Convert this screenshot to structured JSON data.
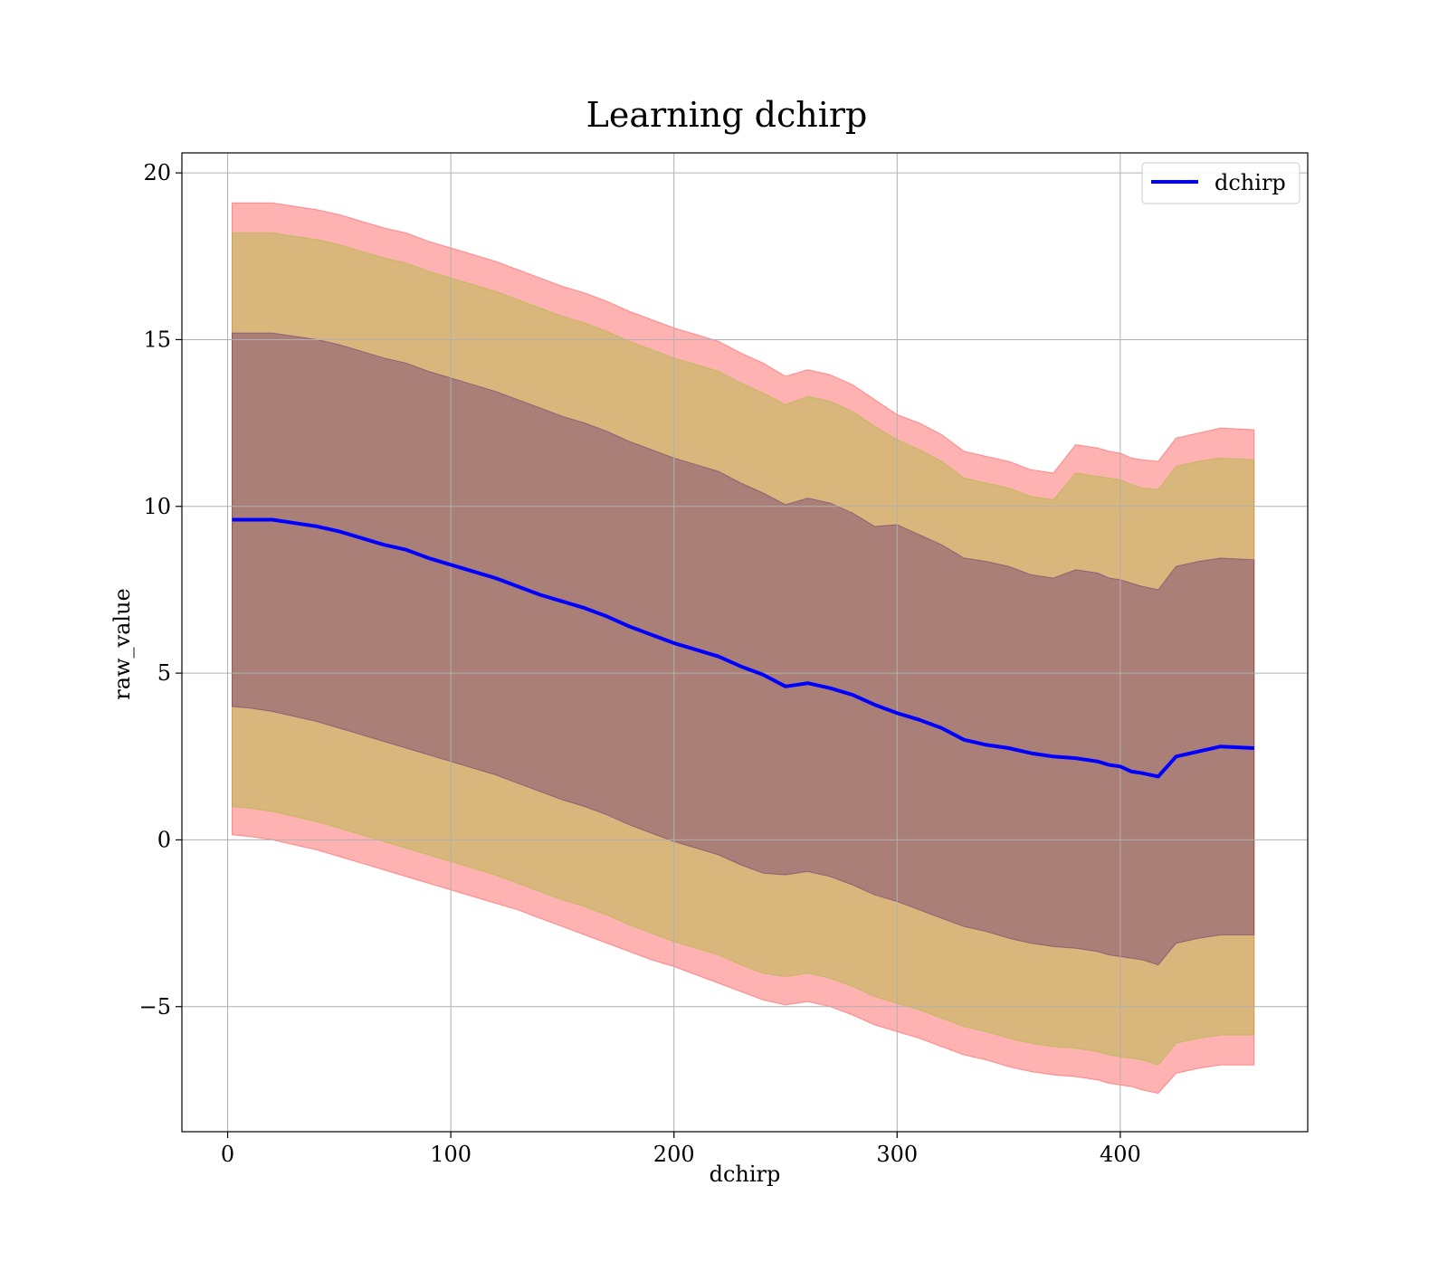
{
  "chart_data": {
    "type": "line",
    "title": "Learning dchirp",
    "xlabel": "dchirp",
    "ylabel": "raw_value",
    "xlim": [
      -20.5,
      484
    ],
    "ylim": [
      -8.75,
      20.6
    ],
    "xticks": [
      0,
      100,
      200,
      300,
      400
    ],
    "yticks": [
      -5,
      0,
      5,
      10,
      15,
      20
    ],
    "grid": true,
    "legend": {
      "placement": "upper right"
    },
    "series": [
      {
        "name": "dchirp",
        "color": "#0000ff",
        "x": [
          2,
          10,
          20,
          30,
          40,
          50,
          60,
          70,
          80,
          90,
          100,
          110,
          120,
          130,
          140,
          150,
          160,
          170,
          180,
          190,
          200,
          210,
          220,
          230,
          240,
          250,
          260,
          270,
          280,
          290,
          300,
          310,
          320,
          330,
          340,
          350,
          360,
          370,
          380,
          390,
          395,
          400,
          405,
          410,
          417,
          425,
          435,
          445,
          460
        ],
        "y": [
          9.6,
          9.6,
          9.6,
          9.5,
          9.4,
          9.25,
          9.05,
          8.85,
          8.7,
          8.45,
          8.25,
          8.05,
          7.85,
          7.6,
          7.35,
          7.15,
          6.95,
          6.7,
          6.4,
          6.15,
          5.9,
          5.7,
          5.5,
          5.2,
          4.95,
          4.6,
          4.7,
          4.55,
          4.35,
          4.05,
          3.8,
          3.6,
          3.35,
          3.0,
          2.85,
          2.75,
          2.6,
          2.5,
          2.45,
          2.35,
          2.25,
          2.2,
          2.05,
          2.0,
          1.9,
          2.5,
          2.65,
          2.8,
          2.75
        ]
      }
    ],
    "bands": [
      {
        "color": "#ff0000",
        "opacity": 0.3,
        "lower": [
          0.15,
          0.1,
          0.0,
          -0.15,
          -0.3,
          -0.5,
          -0.7,
          -0.9,
          -1.1,
          -1.3,
          -1.5,
          -1.7,
          -1.9,
          -2.1,
          -2.35,
          -2.6,
          -2.85,
          -3.1,
          -3.35,
          -3.6,
          -3.8,
          -4.05,
          -4.3,
          -4.55,
          -4.8,
          -4.95,
          -4.85,
          -5.0,
          -5.25,
          -5.55,
          -5.75,
          -5.95,
          -6.2,
          -6.45,
          -6.6,
          -6.8,
          -6.95,
          -7.05,
          -7.1,
          -7.2,
          -7.3,
          -7.35,
          -7.4,
          -7.5,
          -7.6,
          -7.0,
          -6.85,
          -6.75,
          -6.75
        ],
        "upper": [
          19.1,
          19.1,
          19.1,
          19.0,
          18.9,
          18.75,
          18.55,
          18.35,
          18.2,
          17.95,
          17.75,
          17.55,
          17.35,
          17.1,
          16.85,
          16.6,
          16.4,
          16.15,
          15.85,
          15.6,
          15.35,
          15.15,
          14.95,
          14.6,
          14.3,
          13.9,
          14.1,
          13.95,
          13.65,
          13.2,
          12.75,
          12.5,
          12.15,
          11.65,
          11.5,
          11.35,
          11.1,
          11.0,
          11.85,
          11.75,
          11.65,
          11.6,
          11.45,
          11.4,
          11.35,
          12.05,
          12.2,
          12.35,
          12.3
        ]
      },
      {
        "color": "#80c000",
        "opacity": 0.3,
        "lower": [
          1.0,
          0.95,
          0.85,
          0.7,
          0.55,
          0.35,
          0.15,
          -0.05,
          -0.25,
          -0.45,
          -0.65,
          -0.85,
          -1.05,
          -1.3,
          -1.55,
          -1.8,
          -2.0,
          -2.25,
          -2.55,
          -2.8,
          -3.05,
          -3.25,
          -3.45,
          -3.75,
          -4.0,
          -4.1,
          -4.0,
          -4.15,
          -4.4,
          -4.7,
          -4.9,
          -5.1,
          -5.35,
          -5.6,
          -5.75,
          -5.95,
          -6.1,
          -6.2,
          -6.25,
          -6.35,
          -6.45,
          -6.5,
          -6.55,
          -6.6,
          -6.75,
          -6.1,
          -5.95,
          -5.85,
          -5.85
        ],
        "upper": [
          18.2,
          18.2,
          18.2,
          18.1,
          18.0,
          17.85,
          17.65,
          17.45,
          17.3,
          17.05,
          16.85,
          16.65,
          16.45,
          16.2,
          15.95,
          15.7,
          15.5,
          15.25,
          14.95,
          14.7,
          14.45,
          14.25,
          14.05,
          13.7,
          13.4,
          13.05,
          13.3,
          13.15,
          12.85,
          12.4,
          12.0,
          11.7,
          11.35,
          10.85,
          10.7,
          10.55,
          10.3,
          10.2,
          11.0,
          10.9,
          10.85,
          10.8,
          10.65,
          10.55,
          10.5,
          11.2,
          11.35,
          11.45,
          11.4
        ]
      },
      {
        "color": "#400070",
        "opacity": 0.3,
        "lower": [
          4.0,
          3.95,
          3.85,
          3.7,
          3.55,
          3.35,
          3.15,
          2.95,
          2.75,
          2.55,
          2.35,
          2.15,
          1.95,
          1.7,
          1.45,
          1.2,
          1.0,
          0.75,
          0.45,
          0.2,
          -0.05,
          -0.25,
          -0.45,
          -0.75,
          -1.0,
          -1.05,
          -0.95,
          -1.1,
          -1.35,
          -1.65,
          -1.85,
          -2.1,
          -2.35,
          -2.6,
          -2.75,
          -2.95,
          -3.1,
          -3.2,
          -3.25,
          -3.35,
          -3.45,
          -3.5,
          -3.55,
          -3.6,
          -3.75,
          -3.1,
          -2.95,
          -2.85,
          -2.85
        ],
        "upper": [
          15.2,
          15.2,
          15.2,
          15.1,
          15.0,
          14.85,
          14.65,
          14.45,
          14.3,
          14.05,
          13.85,
          13.65,
          13.45,
          13.2,
          12.95,
          12.7,
          12.5,
          12.25,
          11.95,
          11.7,
          11.45,
          11.25,
          11.05,
          10.7,
          10.4,
          10.05,
          10.25,
          10.1,
          9.8,
          9.4,
          9.45,
          9.15,
          8.85,
          8.45,
          8.35,
          8.2,
          7.95,
          7.85,
          8.1,
          8.0,
          7.85,
          7.8,
          7.7,
          7.6,
          7.5,
          8.2,
          8.35,
          8.45,
          8.4
        ]
      }
    ]
  }
}
